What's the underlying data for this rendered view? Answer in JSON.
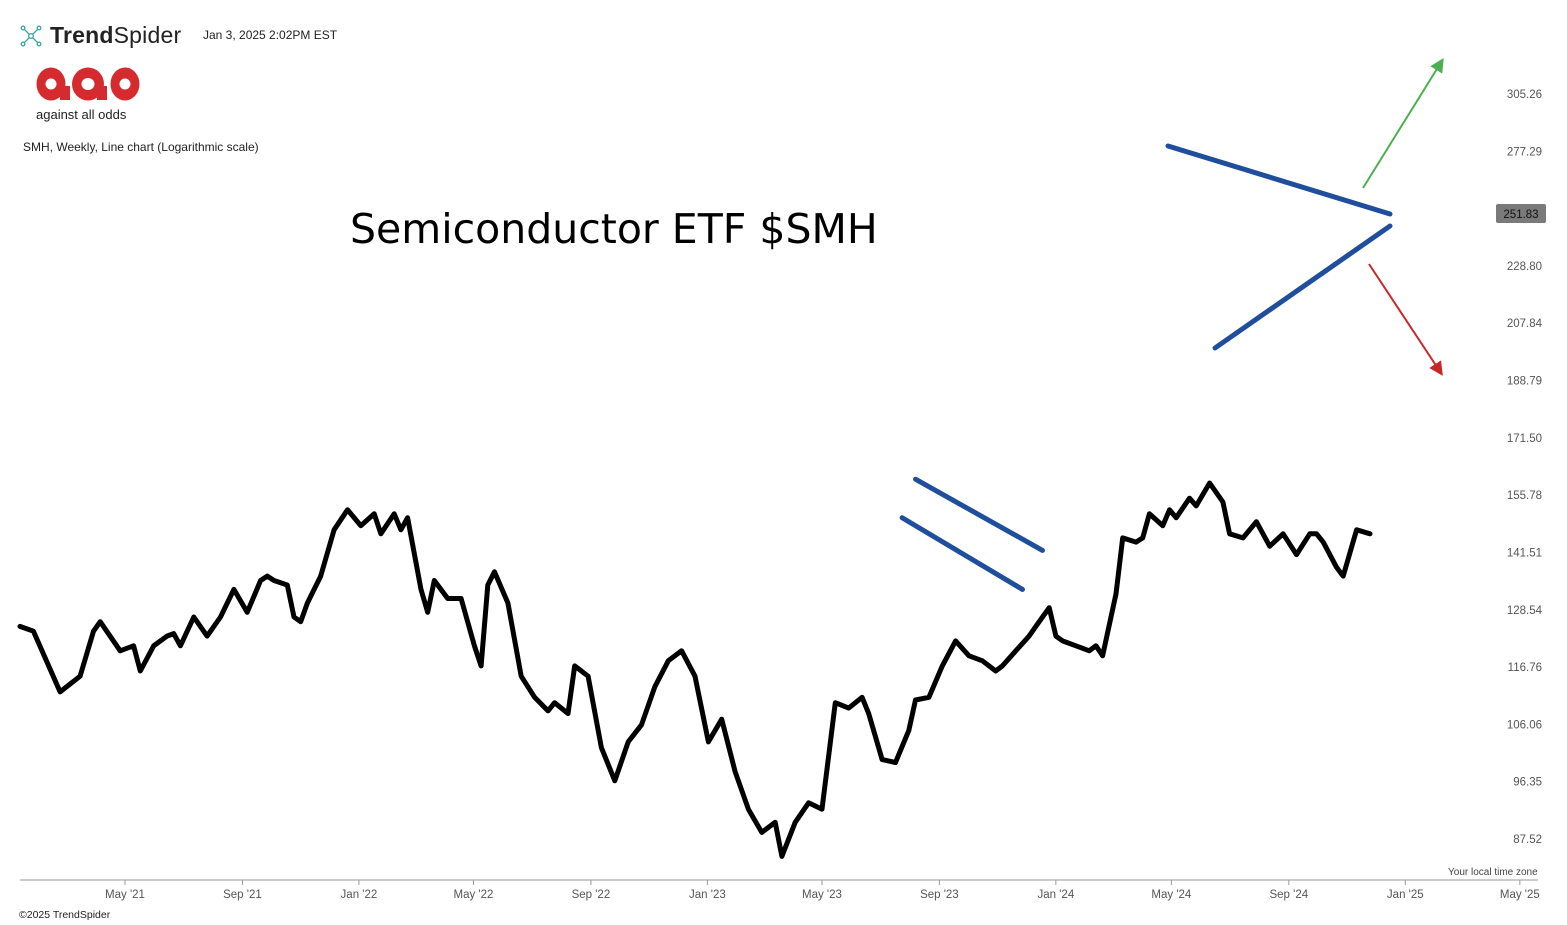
{
  "header": {
    "brand_name_bold": "Trend",
    "brand_name_light": "Spider",
    "timestamp": "Jan 3, 2025 2:02PM EST",
    "logo_text": "against all odds"
  },
  "chart_description": "SMH, Weekly, Line chart (Logarithmic scale)",
  "footer": {
    "copyright": "©2025 TrendSpider",
    "timezone_note": "Your local time zone"
  },
  "colors": {
    "price_line": "#000000",
    "trend_lines": "#1f4e9c",
    "up_arrow": "#4caf50",
    "down_arrow": "#c62828",
    "badge_bg": "#7a7a7a"
  },
  "chart_data": {
    "type": "line",
    "title": "Semiconductor ETF $SMH",
    "symbol": "SMH",
    "interval": "Weekly",
    "yscale": "log",
    "ylim": [
      83,
      320
    ],
    "xlim": [
      "2021-01-11",
      "2025-05-20"
    ],
    "grid": false,
    "y_ticks": [
      305.26,
      277.29,
      251.83,
      228.8,
      207.84,
      188.79,
      171.5,
      155.78,
      141.51,
      128.54,
      116.76,
      106.06,
      96.35,
      87.52
    ],
    "x_ticks": [
      {
        "date": "2021-05-01",
        "label": "May '21"
      },
      {
        "date": "2021-09-01",
        "label": "Sep '21"
      },
      {
        "date": "2022-01-01",
        "label": "Jan '22"
      },
      {
        "date": "2022-05-01",
        "label": "May '22"
      },
      {
        "date": "2022-09-01",
        "label": "Sep '22"
      },
      {
        "date": "2023-01-01",
        "label": "Jan '23"
      },
      {
        "date": "2023-05-01",
        "label": "May '23"
      },
      {
        "date": "2023-09-01",
        "label": "Sep '23"
      },
      {
        "date": "2024-01-01",
        "label": "Jan '24"
      },
      {
        "date": "2024-05-01",
        "label": "May '24"
      },
      {
        "date": "2024-09-01",
        "label": "Sep '24"
      },
      {
        "date": "2025-01-01",
        "label": "Jan '25"
      },
      {
        "date": "2025-05-01",
        "label": "May '25"
      }
    ],
    "last_price": "251.83",
    "series": [
      {
        "values": [
          [
            "2021-01-11",
            125
          ],
          [
            "2021-01-25",
            124
          ],
          [
            "2021-02-22",
            112
          ],
          [
            "2021-03-15",
            115
          ],
          [
            "2021-03-29",
            124
          ],
          [
            "2021-04-05",
            126
          ],
          [
            "2021-04-26",
            120
          ],
          [
            "2021-05-10",
            121
          ],
          [
            "2021-05-17",
            116
          ],
          [
            "2021-05-31",
            121
          ],
          [
            "2021-06-14",
            123
          ],
          [
            "2021-06-21",
            123.5
          ],
          [
            "2021-06-28",
            121
          ],
          [
            "2021-07-12",
            127
          ],
          [
            "2021-07-26",
            123
          ],
          [
            "2021-08-09",
            127
          ],
          [
            "2021-08-23",
            133
          ],
          [
            "2021-09-06",
            128
          ],
          [
            "2021-09-20",
            135
          ],
          [
            "2021-09-27",
            136
          ],
          [
            "2021-10-04",
            135
          ],
          [
            "2021-10-18",
            134
          ],
          [
            "2021-10-25",
            127
          ],
          [
            "2021-11-01",
            126
          ],
          [
            "2021-11-08",
            130
          ],
          [
            "2021-11-22",
            136
          ],
          [
            "2021-12-06",
            147
          ],
          [
            "2021-12-20",
            152
          ],
          [
            "2021-12-27",
            150
          ],
          [
            "2022-01-03",
            148
          ],
          [
            "2022-01-17",
            151
          ],
          [
            "2022-01-24",
            146
          ],
          [
            "2022-02-07",
            151
          ],
          [
            "2022-02-14",
            147
          ],
          [
            "2022-02-21",
            150
          ],
          [
            "2022-03-07",
            133
          ],
          [
            "2022-03-14",
            128
          ],
          [
            "2022-03-21",
            135
          ],
          [
            "2022-04-04",
            131
          ],
          [
            "2022-04-18",
            131
          ],
          [
            "2022-05-02",
            121
          ],
          [
            "2022-05-09",
            117
          ],
          [
            "2022-05-16",
            134
          ],
          [
            "2022-05-23",
            137
          ],
          [
            "2022-06-06",
            130
          ],
          [
            "2022-06-20",
            115
          ],
          [
            "2022-07-04",
            111
          ],
          [
            "2022-07-18",
            108.5
          ],
          [
            "2022-07-25",
            110
          ],
          [
            "2022-08-08",
            108
          ],
          [
            "2022-08-15",
            117
          ],
          [
            "2022-08-29",
            115
          ],
          [
            "2022-09-12",
            102
          ],
          [
            "2022-09-26",
            96.5
          ],
          [
            "2022-10-10",
            103
          ],
          [
            "2022-10-24",
            106
          ],
          [
            "2022-11-07",
            113
          ],
          [
            "2022-11-21",
            118
          ],
          [
            "2022-12-05",
            120
          ],
          [
            "2022-12-19",
            115
          ],
          [
            "2023-01-02",
            103
          ],
          [
            "2023-01-16",
            107
          ],
          [
            "2023-01-30",
            98
          ],
          [
            "2023-02-13",
            92
          ],
          [
            "2023-02-27",
            88.5
          ],
          [
            "2023-03-13",
            90
          ],
          [
            "2023-03-20",
            85
          ],
          [
            "2023-04-03",
            90
          ],
          [
            "2023-04-17",
            93
          ],
          [
            "2023-05-01",
            92
          ],
          [
            "2023-05-15",
            110
          ],
          [
            "2023-05-29",
            109
          ],
          [
            "2023-06-12",
            111
          ],
          [
            "2023-06-19",
            108
          ],
          [
            "2023-07-03",
            100
          ],
          [
            "2023-07-17",
            99.5
          ],
          [
            "2023-07-31",
            105
          ],
          [
            "2023-08-07",
            110.5
          ],
          [
            "2023-08-21",
            111
          ],
          [
            "2023-09-04",
            117
          ],
          [
            "2023-09-18",
            122
          ],
          [
            "2023-10-02",
            119
          ],
          [
            "2023-10-16",
            118
          ],
          [
            "2023-10-30",
            116
          ],
          [
            "2023-11-06",
            117
          ],
          [
            "2023-11-20",
            120
          ],
          [
            "2023-12-04",
            123
          ],
          [
            "2023-12-11",
            125
          ],
          [
            "2023-12-25",
            129
          ],
          [
            "2024-01-01",
            123
          ],
          [
            "2024-01-08",
            122
          ],
          [
            "2024-01-22",
            121
          ],
          [
            "2024-02-05",
            120
          ],
          [
            "2024-02-12",
            121
          ],
          [
            "2024-02-19",
            119
          ],
          [
            "2024-03-04",
            132
          ],
          [
            "2024-03-11",
            145
          ],
          [
            "2024-03-25",
            144
          ],
          [
            "2024-04-01",
            145
          ],
          [
            "2024-04-08",
            151
          ],
          [
            "2024-04-22",
            148
          ],
          [
            "2024-04-29",
            152
          ],
          [
            "2024-05-06",
            150
          ],
          [
            "2024-05-20",
            155
          ],
          [
            "2024-05-27",
            153
          ],
          [
            "2024-06-10",
            159
          ],
          [
            "2024-06-24",
            154
          ],
          [
            "2024-07-01",
            146
          ],
          [
            "2024-07-15",
            145
          ],
          [
            "2024-07-29",
            149
          ],
          [
            "2024-08-12",
            143
          ],
          [
            "2024-08-26",
            146
          ],
          [
            "2024-09-09",
            141
          ],
          [
            "2024-09-23",
            146
          ],
          [
            "2024-09-30",
            146
          ],
          [
            "2024-10-07",
            144
          ],
          [
            "2024-10-21",
            138
          ],
          [
            "2024-10-28",
            136
          ],
          [
            "2024-11-11",
            147
          ],
          [
            "2024-11-25",
            146
          ]
        ]
      }
    ],
    "trend_lines": [
      {
        "start": [
          "2023-07-24",
          150
        ],
        "end": [
          "2023-11-27",
          133
        ]
      },
      {
        "start": [
          "2023-08-07",
          160
        ],
        "end": [
          "2023-12-18",
          142
        ]
      }
    ]
  }
}
